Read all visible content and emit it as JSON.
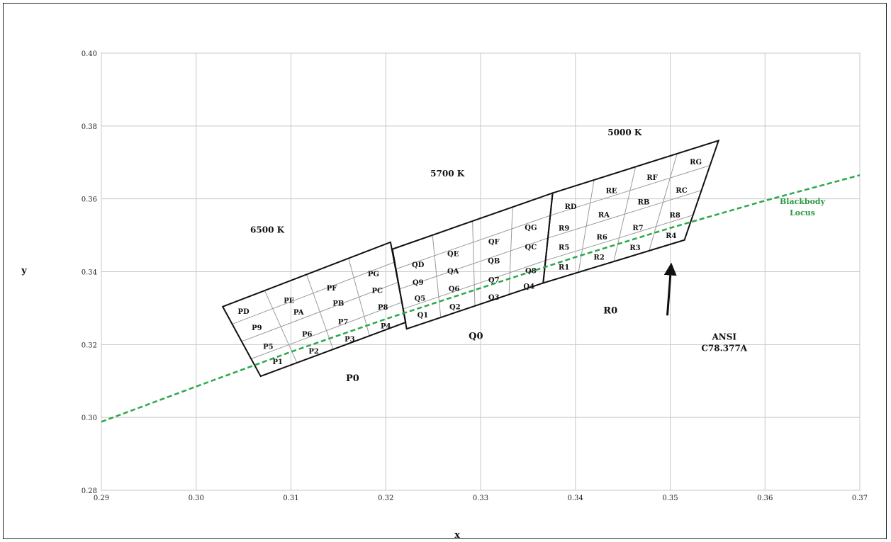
{
  "chart_data": {
    "type": "scatter",
    "xlabel": "x",
    "ylabel": "y",
    "xlim": [
      0.29,
      0.37
    ],
    "ylim": [
      0.28,
      0.4
    ],
    "x_ticks": [
      "0.29",
      "0.30",
      "0.31",
      "0.32",
      "0.33",
      "0.34",
      "0.35",
      "0.36",
      "0.37"
    ],
    "y_ticks": [
      "0.28",
      "0.30",
      "0.32",
      "0.34",
      "0.36",
      "0.38",
      "0.40"
    ],
    "grid": true,
    "blackbody_locus": {
      "label_line1": "Blackbody",
      "label_line2": "Locus",
      "color": "#2aa84a",
      "points": [
        [
          0.29,
          0.2988
        ],
        [
          0.3,
          0.3085
        ],
        [
          0.31,
          0.318
        ],
        [
          0.32,
          0.327
        ],
        [
          0.33,
          0.3355
        ],
        [
          0.34,
          0.344
        ],
        [
          0.35,
          0.352
        ],
        [
          0.36,
          0.3595
        ],
        [
          0.37,
          0.3665
        ]
      ]
    },
    "groups": [
      {
        "name": "P0",
        "cct": "6500 K",
        "label_pos": [
          0.3165,
          0.3107
        ],
        "cct_pos": [
          0.3075,
          0.3515
        ],
        "corners": [
          [
            0.3028,
            0.3304
          ],
          [
            0.3205,
            0.3481
          ],
          [
            0.3221,
            0.3261
          ],
          [
            0.3068,
            0.3113
          ]
        ],
        "bins": [
          {
            "code": "P1",
            "pos": [
              0.3086,
              0.3154
            ]
          },
          {
            "code": "P2",
            "pos": [
              0.3124,
              0.3183
            ]
          },
          {
            "code": "P3",
            "pos": [
              0.3162,
              0.3216
            ]
          },
          {
            "code": "P4",
            "pos": [
              0.32,
              0.3252
            ]
          },
          {
            "code": "P5",
            "pos": [
              0.3076,
              0.3196
            ]
          },
          {
            "code": "P6",
            "pos": [
              0.3117,
              0.323
            ]
          },
          {
            "code": "P7",
            "pos": [
              0.3155,
              0.3264
            ]
          },
          {
            "code": "P8",
            "pos": [
              0.3197,
              0.3304
            ]
          },
          {
            "code": "P9",
            "pos": [
              0.3064,
              0.3247
            ]
          },
          {
            "code": "PA",
            "pos": [
              0.3108,
              0.329
            ]
          },
          {
            "code": "PB",
            "pos": [
              0.315,
              0.3314
            ]
          },
          {
            "code": "PC",
            "pos": [
              0.3191,
              0.3349
            ]
          },
          {
            "code": "PD",
            "pos": [
              0.305,
              0.3292
            ]
          },
          {
            "code": "PE",
            "pos": [
              0.3098,
              0.3322
            ]
          },
          {
            "code": "PF",
            "pos": [
              0.3143,
              0.3356
            ]
          },
          {
            "code": "PG",
            "pos": [
              0.3187,
              0.3395
            ]
          }
        ]
      },
      {
        "name": "Q0",
        "cct": "5700 K",
        "label_pos": [
          0.3295,
          0.3223
        ],
        "cct_pos": [
          0.3265,
          0.3669
        ],
        "corners": [
          [
            0.3207,
            0.3462
          ],
          [
            0.3376,
            0.3616
          ],
          [
            0.3366,
            0.3369
          ],
          [
            0.3222,
            0.3243
          ]
        ],
        "bins": [
          {
            "code": "Q1",
            "pos": [
              0.3239,
              0.3282
            ]
          },
          {
            "code": "Q2",
            "pos": [
              0.3273,
              0.3305
            ]
          },
          {
            "code": "Q3",
            "pos": [
              0.3314,
              0.3331
            ]
          },
          {
            "code": "Q4",
            "pos": [
              0.3351,
              0.3361
            ]
          },
          {
            "code": "Q5",
            "pos": [
              0.3236,
              0.3328
            ]
          },
          {
            "code": "Q6",
            "pos": [
              0.3272,
              0.3354
            ]
          },
          {
            "code": "Q7",
            "pos": [
              0.3314,
              0.3379
            ]
          },
          {
            "code": "Q8",
            "pos": [
              0.3353,
              0.3404
            ]
          },
          {
            "code": "Q9",
            "pos": [
              0.3234,
              0.3372
            ]
          },
          {
            "code": "QA",
            "pos": [
              0.3271,
              0.3403
            ]
          },
          {
            "code": "QB",
            "pos": [
              0.3314,
              0.3431
            ]
          },
          {
            "code": "QC",
            "pos": [
              0.3353,
              0.3469
            ]
          },
          {
            "code": "QD",
            "pos": [
              0.3234,
              0.342
            ]
          },
          {
            "code": "QE",
            "pos": [
              0.3271,
              0.3451
            ]
          },
          {
            "code": "QF",
            "pos": [
              0.3314,
              0.3484
            ]
          },
          {
            "code": "QG",
            "pos": [
              0.3353,
              0.3523
            ]
          }
        ]
      },
      {
        "name": "R0",
        "cct": "5000 K",
        "label_pos": [
          0.3437,
          0.3293
        ],
        "cct_pos": [
          0.3452,
          0.3782
        ],
        "corners": [
          [
            0.3376,
            0.3616
          ],
          [
            0.3551,
            0.376
          ],
          [
            0.3515,
            0.3487
          ],
          [
            0.3366,
            0.3369
          ]
        ],
        "bins": [
          {
            "code": "R1",
            "pos": [
              0.3388,
              0.3414
            ]
          },
          {
            "code": "R2",
            "pos": [
              0.3425,
              0.3441
            ]
          },
          {
            "code": "R3",
            "pos": [
              0.3463,
              0.3467
            ]
          },
          {
            "code": "R4",
            "pos": [
              0.3501,
              0.35
            ]
          },
          {
            "code": "R5",
            "pos": [
              0.3388,
              0.3468
            ]
          },
          {
            "code": "R6",
            "pos": [
              0.3428,
              0.3496
            ]
          },
          {
            "code": "R7",
            "pos": [
              0.3466,
              0.3522
            ]
          },
          {
            "code": "R8",
            "pos": [
              0.3505,
              0.3557
            ]
          },
          {
            "code": "R9",
            "pos": [
              0.3388,
              0.3521
            ]
          },
          {
            "code": "RA",
            "pos": [
              0.343,
              0.3558
            ]
          },
          {
            "code": "RB",
            "pos": [
              0.3472,
              0.3593
            ]
          },
          {
            "code": "RC",
            "pos": [
              0.3512,
              0.3625
            ]
          },
          {
            "code": "RD",
            "pos": [
              0.3395,
              0.358
            ]
          },
          {
            "code": "RE",
            "pos": [
              0.3438,
              0.3624
            ]
          },
          {
            "code": "RF",
            "pos": [
              0.3481,
              0.366
            ]
          },
          {
            "code": "RG",
            "pos": [
              0.3527,
              0.3702
            ]
          }
        ]
      }
    ],
    "annotation": {
      "line1": "ANSI",
      "line2": "C78.377A",
      "text_pos": [
        0.3557,
        0.3213
      ],
      "arrow_from": [
        0.3497,
        0.328
      ],
      "arrow_to": [
        0.3501,
        0.3418
      ]
    }
  }
}
